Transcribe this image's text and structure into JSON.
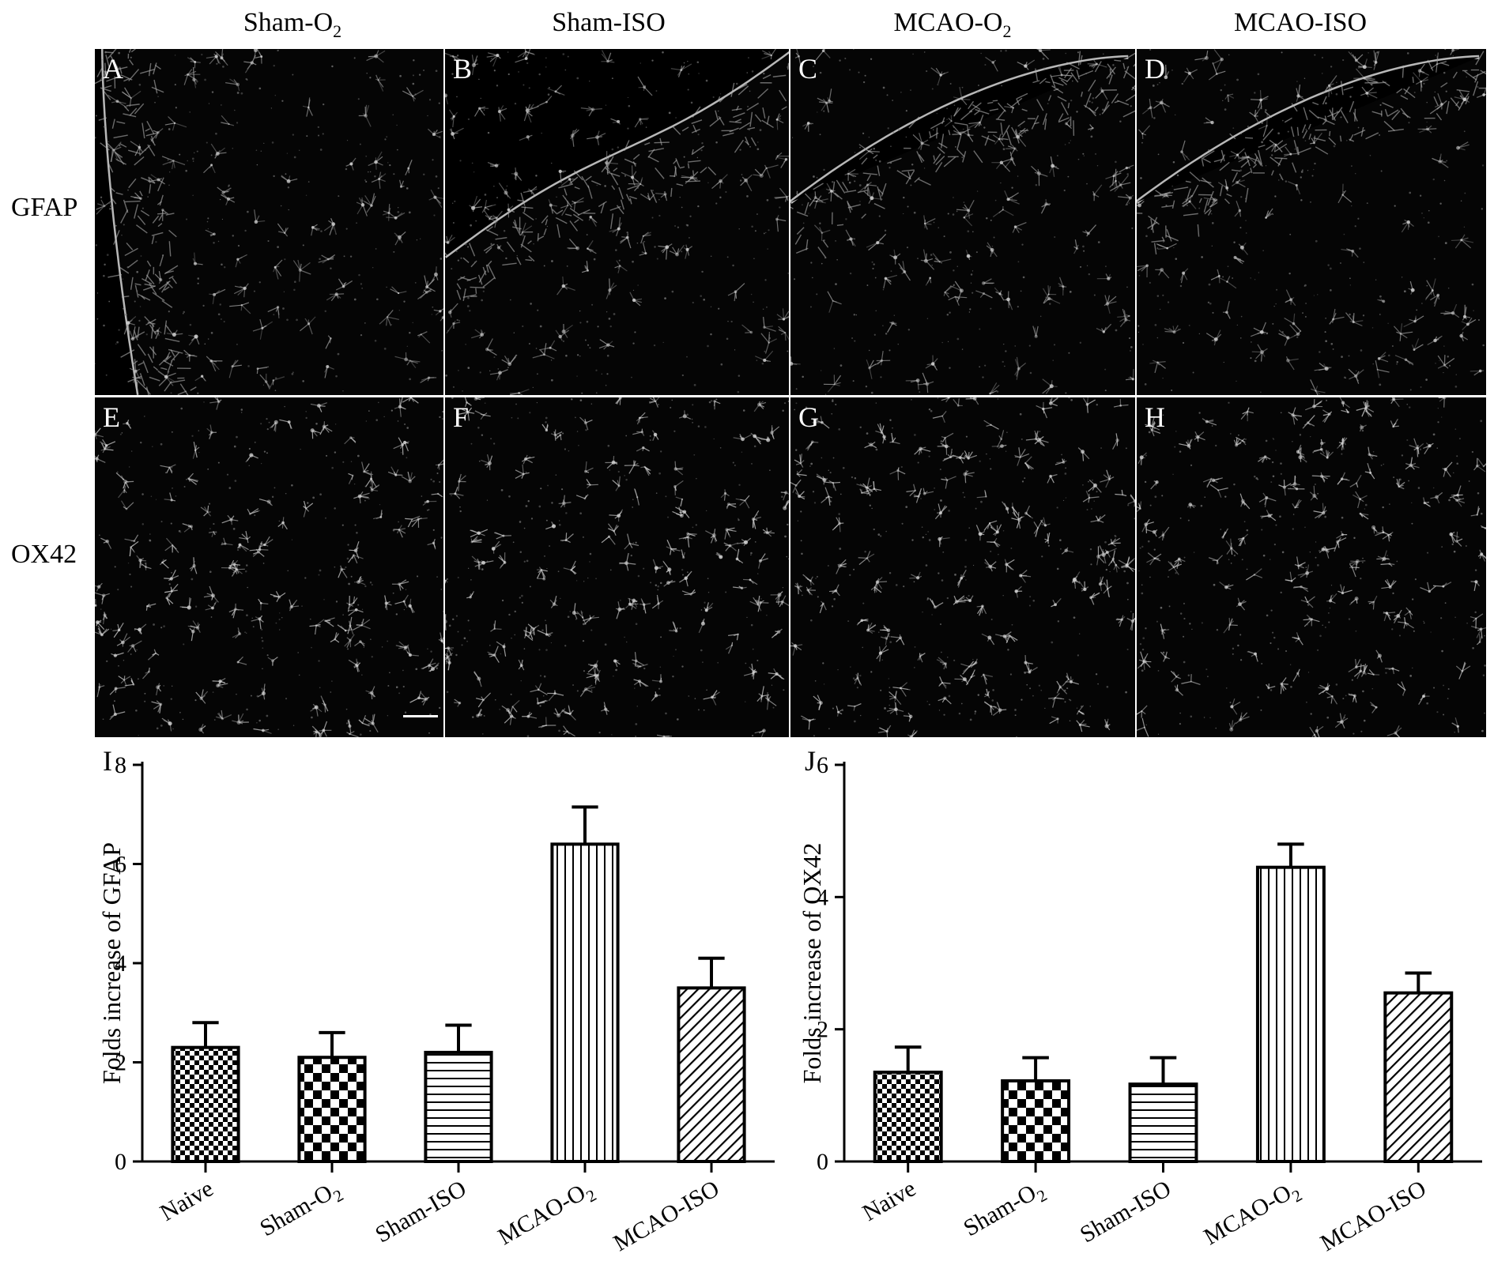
{
  "column_headers": [
    {
      "main": "Sham-O",
      "sub": "2"
    },
    {
      "main": "Sham-ISO",
      "sub": ""
    },
    {
      "main": "MCAO-O",
      "sub": "2"
    },
    {
      "main": "MCAO-ISO",
      "sub": ""
    }
  ],
  "row_labels": [
    "GFAP",
    "OX42"
  ],
  "panels": [
    {
      "letter": "A",
      "stain": "GFAP",
      "group": "Sham-O2",
      "edge": "left"
    },
    {
      "letter": "B",
      "stain": "GFAP",
      "group": "Sham-ISO",
      "edge": "topleft"
    },
    {
      "letter": "C",
      "stain": "GFAP",
      "group": "MCAO-O2",
      "edge": "top"
    },
    {
      "letter": "D",
      "stain": "GFAP",
      "group": "MCAO-ISO",
      "edge": "top"
    },
    {
      "letter": "E",
      "stain": "OX42",
      "group": "Sham-O2",
      "edge": "none"
    },
    {
      "letter": "F",
      "stain": "OX42",
      "group": "Sham-ISO",
      "edge": "none"
    },
    {
      "letter": "G",
      "stain": "OX42",
      "group": "MCAO-O2",
      "edge": "none"
    },
    {
      "letter": "H",
      "stain": "OX42",
      "group": "MCAO-ISO",
      "edge": "none"
    }
  ],
  "chart_data": [
    {
      "type": "bar",
      "panel_letter": "I",
      "ylabel": "Folds increase of GFAP",
      "ylim": [
        0,
        8
      ],
      "yticks": [
        "0",
        "2",
        "4",
        "6",
        "8"
      ],
      "categories": [
        {
          "main": "Naive",
          "sub": ""
        },
        {
          "main": "Sham-O",
          "sub": "2"
        },
        {
          "main": "Sham-ISO",
          "sub": ""
        },
        {
          "main": "MCAO-O",
          "sub": "2"
        },
        {
          "main": "MCAO-ISO",
          "sub": ""
        }
      ],
      "values": [
        2.3,
        2.1,
        2.2,
        6.4,
        3.5
      ],
      "errors": [
        0.5,
        0.5,
        0.55,
        0.75,
        0.6
      ],
      "patterns": [
        "checker-small",
        "checker-large",
        "horizontal-lines",
        "vertical-lines",
        "diagonal-lines"
      ]
    },
    {
      "type": "bar",
      "panel_letter": "J",
      "ylabel": "Folds increase of OX42",
      "ylim": [
        0,
        6
      ],
      "yticks": [
        "0",
        "2",
        "4",
        "6"
      ],
      "categories": [
        {
          "main": "Naive",
          "sub": ""
        },
        {
          "main": "Sham-O",
          "sub": "2"
        },
        {
          "main": "Sham-ISO",
          "sub": ""
        },
        {
          "main": "MCAO-O",
          "sub": "2"
        },
        {
          "main": "MCAO-ISO",
          "sub": ""
        }
      ],
      "values": [
        1.35,
        1.22,
        1.17,
        4.45,
        2.55
      ],
      "errors": [
        0.38,
        0.35,
        0.4,
        0.35,
        0.3
      ],
      "patterns": [
        "checker-small",
        "checker-large",
        "horizontal-lines",
        "vertical-lines",
        "diagonal-lines"
      ]
    }
  ]
}
